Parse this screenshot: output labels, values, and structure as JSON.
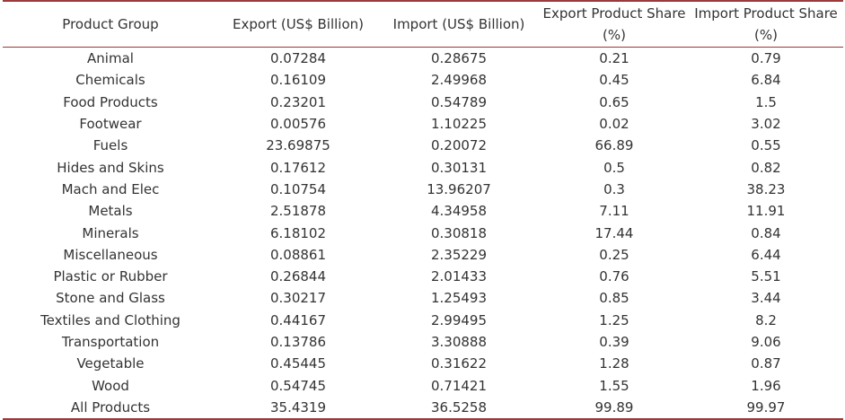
{
  "table": {
    "headers": [
      "Product Group",
      "Export (US$ Billion)",
      "Import (US$ Billion)",
      "Export Product Share (%)",
      "Import Product Share (%)"
    ],
    "rows": [
      [
        "Animal",
        "0.07284",
        "0.28675",
        "0.21",
        "0.79"
      ],
      [
        "Chemicals",
        "0.16109",
        "2.49968",
        "0.45",
        "6.84"
      ],
      [
        "Food Products",
        "0.23201",
        "0.54789",
        "0.65",
        "1.5"
      ],
      [
        "Footwear",
        "0.00576",
        "1.10225",
        "0.02",
        "3.02"
      ],
      [
        "Fuels",
        "23.69875",
        "0.20072",
        "66.89",
        "0.55"
      ],
      [
        "Hides and Skins",
        "0.17612",
        "0.30131",
        "0.5",
        "0.82"
      ],
      [
        "Mach and Elec",
        "0.10754",
        "13.96207",
        "0.3",
        "38.23"
      ],
      [
        "Metals",
        "2.51878",
        "4.34958",
        "7.11",
        "11.91"
      ],
      [
        "Minerals",
        "6.18102",
        "0.30818",
        "17.44",
        "0.84"
      ],
      [
        "Miscellaneous",
        "0.08861",
        "2.35229",
        "0.25",
        "6.44"
      ],
      [
        "Plastic or Rubber",
        "0.26844",
        "2.01433",
        "0.76",
        "5.51"
      ],
      [
        "Stone and Glass",
        "0.30217",
        "1.25493",
        "0.85",
        "3.44"
      ],
      [
        "Textiles and Clothing",
        "0.44167",
        "2.99495",
        "1.25",
        "8.2"
      ],
      [
        "Transportation",
        "0.13786",
        "3.30888",
        "0.39",
        "9.06"
      ],
      [
        "Vegetable",
        "0.45445",
        "0.31622",
        "1.28",
        "0.87"
      ],
      [
        "Wood",
        "0.54745",
        "0.71421",
        "1.55",
        "1.96"
      ],
      [
        "All Products",
        "35.4319",
        "36.5258",
        "99.89",
        "99.97"
      ]
    ]
  }
}
